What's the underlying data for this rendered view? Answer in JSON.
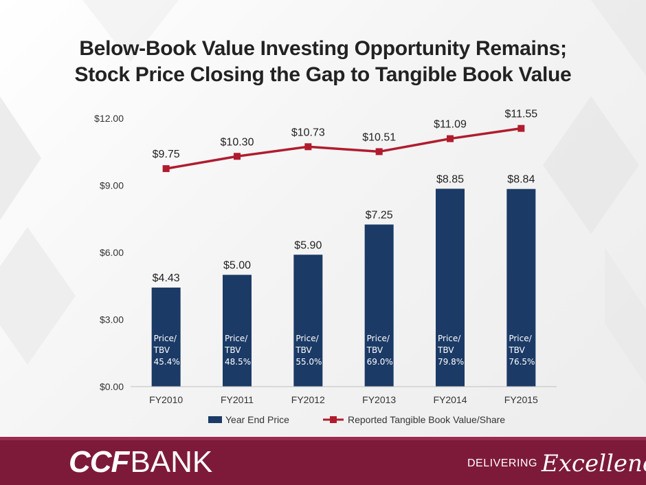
{
  "title": {
    "line1": "Below-Book Value Investing Opportunity Remains;",
    "line2": "Stock Price Closing the Gap to Tangible Book Value"
  },
  "chart_data": {
    "type": "bar",
    "categories": [
      "FY2010",
      "FY2011",
      "FY2012",
      "FY2013",
      "FY2014",
      "FY2015"
    ],
    "series": [
      {
        "name": "Year End Price",
        "type": "bar",
        "color": "#1b3a66",
        "values": [
          4.43,
          5.0,
          5.9,
          7.25,
          8.85,
          8.84
        ],
        "labels": [
          "$4.43",
          "$5.00",
          "$5.90",
          "$7.25",
          "$8.85",
          "$8.84"
        ]
      },
      {
        "name": "Reported Tangible Book Value/Share",
        "type": "line",
        "color": "#b01c2e",
        "values": [
          9.75,
          10.3,
          10.73,
          10.51,
          11.09,
          11.55
        ],
        "labels": [
          "$9.75",
          "$10.30",
          "$10.73",
          "$10.51",
          "$11.09",
          "$11.55"
        ]
      }
    ],
    "bar_annotations": [
      {
        "l1": "Price/",
        "l2": "TBV",
        "l3": "45.4%"
      },
      {
        "l1": "Price/",
        "l2": "TBV",
        "l3": "48.5%"
      },
      {
        "l1": "Price/",
        "l2": "TBV",
        "l3": "55.0%"
      },
      {
        "l1": "Price/",
        "l2": "TBV",
        "l3": "69.0%"
      },
      {
        "l1": "Price/",
        "l2": "TBV",
        "l3": "79.8%"
      },
      {
        "l1": "Price/",
        "l2": "TBV",
        "l3": "76.5%"
      }
    ],
    "yticks": [
      0,
      3,
      6,
      9,
      12
    ],
    "ytick_labels": [
      "$0.00",
      "$3.00",
      "$6.00",
      "$9.00",
      "$12.00"
    ],
    "ylim": [
      0,
      12
    ],
    "grid": false,
    "legend": "bottom",
    "xlabel": "",
    "ylabel": ""
  },
  "footer": {
    "logo_ccf": "CCF",
    "logo_bank": "BANK",
    "tagline_delivering": "DELIVERING",
    "tagline_excellence": "Excellence"
  },
  "colors": {
    "footer_bg": "#7d1a3a",
    "bar": "#1b3a66",
    "line": "#b01c2e"
  }
}
